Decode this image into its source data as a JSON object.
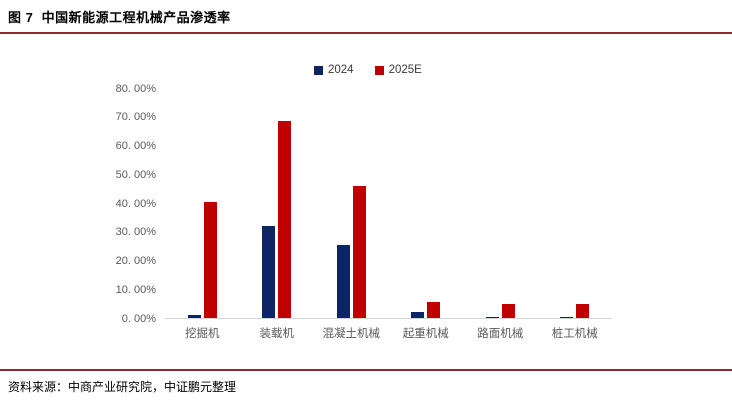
{
  "header": {
    "title": "图 7  中国新能源工程机械产品渗透率"
  },
  "footer": {
    "source": "资料来源：中商产业研究院，中证鹏元整理"
  },
  "colors": {
    "accent_rule": "#8e2a35",
    "axis_line": "#d6d6d6",
    "tick_text": "#595959",
    "series_2024": "#0d2563",
    "series_2025e": "#c00000"
  },
  "chart_data": {
    "type": "bar",
    "title": "中国新能源工程机械产品渗透率",
    "categories": [
      "挖掘机",
      "装载机",
      "混凝土机械",
      "起重机械",
      "路面机械",
      "桩工机械"
    ],
    "series": [
      {
        "name": "2024",
        "color": "#0d2563",
        "values": [
          1.0,
          32.0,
          25.5,
          2.0,
          0.5,
          0.5
        ]
      },
      {
        "name": "2025E",
        "color": "#c00000",
        "values": [
          40.5,
          68.5,
          46.0,
          5.5,
          5.0,
          4.8
        ]
      }
    ],
    "xlabel": "",
    "ylabel": "",
    "ylim": [
      0,
      80
    ],
    "yticks": [
      {
        "value": 0,
        "label": "0. 00%"
      },
      {
        "value": 10,
        "label": "10. 00%"
      },
      {
        "value": 20,
        "label": "20. 00%"
      },
      {
        "value": 30,
        "label": "30. 00%"
      },
      {
        "value": 40,
        "label": "40. 00%"
      },
      {
        "value": 50,
        "label": "50. 00%"
      },
      {
        "value": 60,
        "label": "60. 00%"
      },
      {
        "value": 70,
        "label": "70. 00%"
      },
      {
        "value": 80,
        "label": "80. 00%"
      }
    ],
    "grid": false,
    "legend_position": "top-center"
  }
}
